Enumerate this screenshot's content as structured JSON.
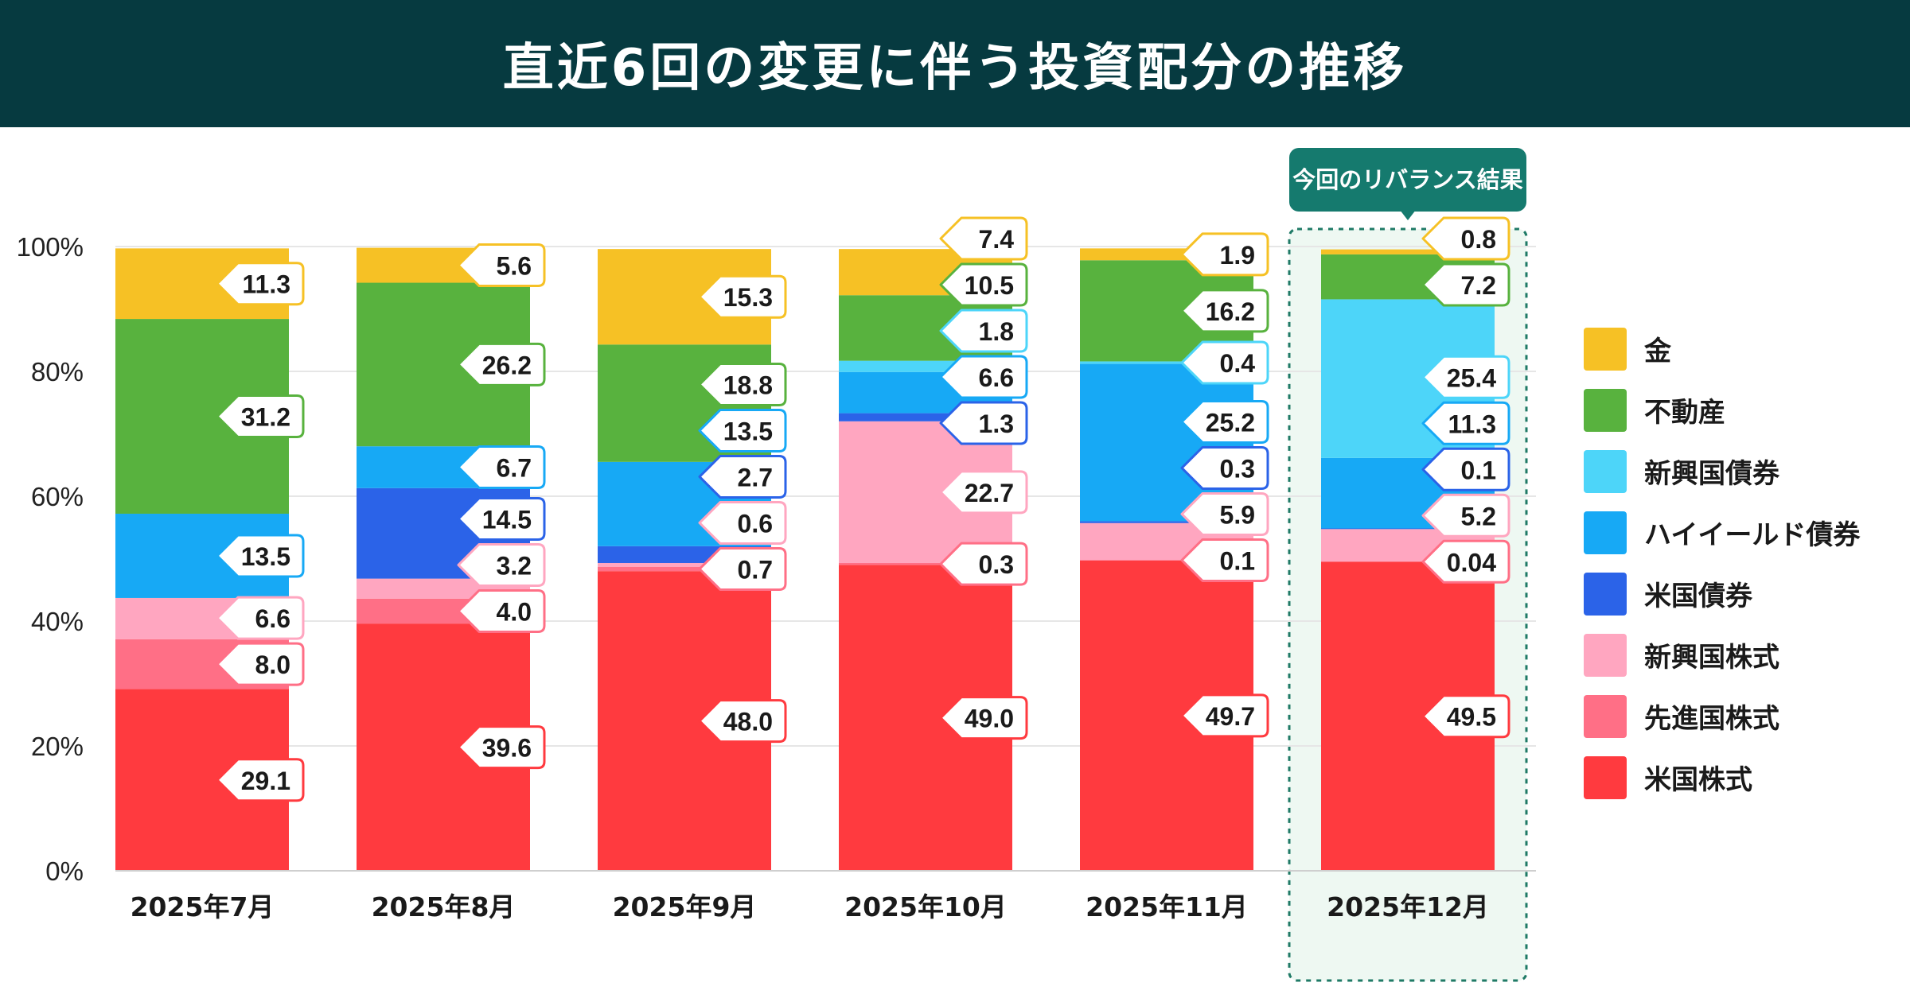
{
  "header": {
    "title": "直近6回の変更に伴う投資配分の推移"
  },
  "highlight_badge": "今回のリバランス結果",
  "chart_data": {
    "type": "bar",
    "stacked": true,
    "title": "直近6回の変更に伴う投資配分の推移",
    "categories": [
      "2025年7月",
      "2025年8月",
      "2025年9月",
      "2025年10月",
      "2025年11月",
      "2025年12月"
    ],
    "highlighted_category": "2025年12月",
    "ylim": [
      0,
      100
    ],
    "yticks": [
      "0%",
      "20%",
      "40%",
      "60%",
      "80%",
      "100%"
    ],
    "grid": true,
    "legend_position": "right",
    "series": [
      {
        "name": "米国株式",
        "color": "#ff3a3f",
        "values": [
          29.1,
          39.6,
          48.0,
          49.0,
          49.7,
          49.5
        ],
        "labels": [
          "29.1",
          "39.6",
          "48.0",
          "49.0",
          "49.7",
          "49.5"
        ]
      },
      {
        "name": "先進国株式",
        "color": "#ff6f86",
        "values": [
          8.0,
          4.0,
          0.7,
          0.3,
          0.1,
          0.04
        ],
        "labels": [
          "8.0",
          "4.0",
          "0.7",
          "0.3",
          "0.1",
          "0.04"
        ]
      },
      {
        "name": "新興国株式",
        "color": "#ffa6c0",
        "values": [
          6.6,
          3.2,
          0.6,
          22.7,
          5.9,
          5.2
        ],
        "labels": [
          "6.6",
          "3.2",
          "0.6",
          "22.7",
          "5.9",
          "5.2"
        ]
      },
      {
        "name": "米国債券",
        "color": "#2b63e8",
        "values": [
          0,
          14.5,
          2.7,
          1.3,
          0.3,
          0.1
        ],
        "labels": [
          null,
          "14.5",
          "2.7",
          "1.3",
          "0.3",
          "0.1"
        ]
      },
      {
        "name": "ハイイールド債券",
        "color": "#17a9f5",
        "values": [
          13.5,
          6.7,
          13.5,
          6.6,
          25.2,
          11.3
        ],
        "labels": [
          "13.5",
          "6.7",
          "13.5",
          "6.6",
          "25.2",
          "11.3"
        ]
      },
      {
        "name": "新興国債券",
        "color": "#4dd5f9",
        "values": [
          0,
          0,
          0,
          1.8,
          0.4,
          25.4
        ],
        "labels": [
          null,
          null,
          null,
          "1.8",
          "0.4",
          "25.4"
        ]
      },
      {
        "name": "不動産",
        "color": "#58b23e",
        "values": [
          31.2,
          26.2,
          18.8,
          10.5,
          16.2,
          7.2
        ],
        "labels": [
          "31.2",
          "26.2",
          "18.8",
          "10.5",
          "16.2",
          "7.2"
        ]
      },
      {
        "name": "金",
        "color": "#f6c125",
        "values": [
          11.3,
          5.6,
          15.3,
          7.4,
          1.9,
          0.8
        ],
        "labels": [
          "11.3",
          "5.6",
          "15.3",
          "7.4",
          "1.9",
          "0.8"
        ]
      }
    ],
    "legend_order": [
      "金",
      "不動産",
      "新興国債券",
      "ハイイールド債券",
      "米国債券",
      "新興国株式",
      "先進国株式",
      "米国株式"
    ]
  }
}
